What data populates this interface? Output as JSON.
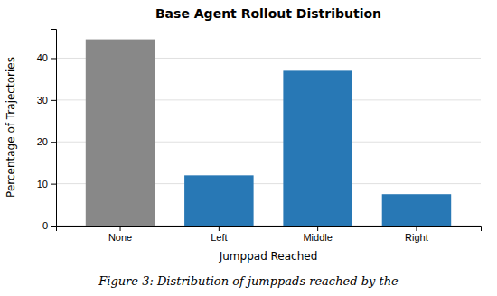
{
  "chart_data": {
    "type": "bar",
    "title": "Base Agent Rollout Distribution",
    "xlabel": "Jumppad Reached",
    "ylabel": "Percentage of Trajectories",
    "caption": "Figure 3: Distribution of jumppads reached by the",
    "categories": [
      "None",
      "Left",
      "Middle",
      "Right"
    ],
    "values": [
      44.5,
      12.0,
      37.0,
      7.5
    ],
    "colors": [
      "#888888",
      "#2878b5",
      "#2878b5",
      "#2878b5"
    ],
    "ylim": [
      0,
      47
    ],
    "yticks": [
      0,
      10,
      20,
      30,
      40
    ],
    "grid": true
  }
}
